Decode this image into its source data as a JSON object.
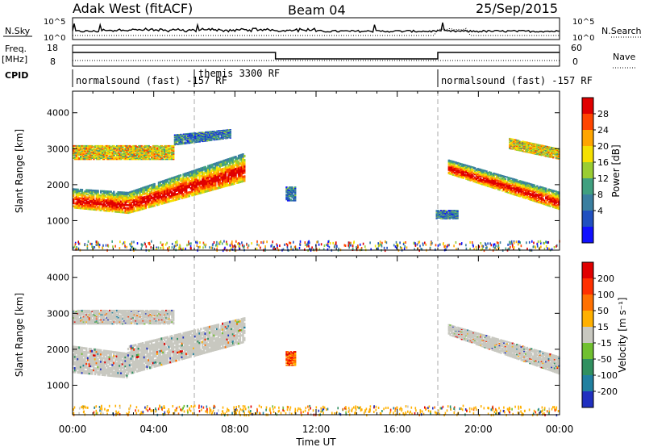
{
  "header": {
    "title": "Adak West (fitACF)",
    "beam": "Beam 04",
    "date": "25/Sep/2015"
  },
  "strip_nsky": {
    "left_label": "N.Sky",
    "right_label": "N.Search",
    "tick_top": "10^5",
    "tick_bottom": "10^0"
  },
  "strip_freq": {
    "left_label_1": "Freq.",
    "left_label_2": "[MHz]",
    "right_label": "Nave",
    "left_ticks": [
      "18",
      "8"
    ],
    "right_ticks": [
      "60",
      "0"
    ]
  },
  "cpid": {
    "label": "CPID",
    "segments": [
      {
        "text": "normalsound (fast) -157 RF",
        "start_hour": 0.0
      },
      {
        "text": "themis 3300 RF",
        "start_hour": 6.0
      },
      {
        "text": "normalsound (fast) -157 RF",
        "start_hour": 18.0
      }
    ]
  },
  "chart_data": [
    {
      "type": "heatmap",
      "name": "power",
      "ylabel": "Slant Range [km]",
      "xlabel": "Time UT",
      "xlim": [
        0,
        24
      ],
      "ylim": [
        180,
        4600
      ],
      "yticks": [
        1000,
        2000,
        3000,
        4000
      ],
      "xtick_labels": [
        "00:00",
        "04:00",
        "08:00",
        "12:00",
        "16:00",
        "20:00",
        "00:00"
      ],
      "colorbar": {
        "label": "Power [dB]",
        "ticks": [
          "4",
          "8",
          "12",
          "16",
          "20",
          "24",
          "28"
        ],
        "colors": [
          "#1010ff",
          "#2050c0",
          "#3a7fa0",
          "#40a080",
          "#9acd32",
          "#f5e000",
          "#ffa500",
          "#ff4500",
          "#e00000"
        ]
      },
      "bands": [
        {
          "t0": 0.0,
          "t1": 2.7,
          "r_lo0": 1350,
          "r_lo1": 1200,
          "r_hi0": 1900,
          "r_hi1": 1800,
          "level": "strong"
        },
        {
          "t0": 2.7,
          "t1": 8.5,
          "r_lo0": 1200,
          "r_lo1": 2100,
          "r_hi0": 1800,
          "r_hi1": 2900,
          "level": "strong"
        },
        {
          "t0": 0.0,
          "t1": 5.0,
          "r_lo0": 2700,
          "r_lo1": 2700,
          "r_hi0": 3100,
          "r_hi1": 3100,
          "level": "medium"
        },
        {
          "t0": 5.0,
          "t1": 7.8,
          "r_lo0": 3100,
          "r_lo1": 3300,
          "r_hi0": 3400,
          "r_hi1": 3550,
          "level": "weak"
        },
        {
          "t0": 10.5,
          "t1": 11.0,
          "r_lo0": 1550,
          "r_lo1": 1550,
          "r_hi0": 1950,
          "r_hi1": 1950,
          "level": "weak"
        },
        {
          "t0": 17.9,
          "t1": 19.0,
          "r_lo0": 1050,
          "r_lo1": 1050,
          "r_hi0": 1300,
          "r_hi1": 1300,
          "level": "weak"
        },
        {
          "t0": 18.5,
          "t1": 24.0,
          "r_lo0": 2300,
          "r_lo1": 1300,
          "r_hi0": 2700,
          "r_hi1": 1800,
          "level": "strong"
        },
        {
          "t0": 21.5,
          "t1": 24.0,
          "r_lo0": 3000,
          "r_lo1": 2700,
          "r_hi0": 3300,
          "r_hi1": 3000,
          "level": "medium"
        }
      ]
    },
    {
      "type": "heatmap",
      "name": "velocity",
      "ylabel": "Slant Range [km]",
      "xlabel": "Time UT",
      "xlim": [
        0,
        24
      ],
      "ylim": [
        180,
        4600
      ],
      "yticks": [
        1000,
        2000,
        3000,
        4000
      ],
      "xtick_labels": [
        "00:00",
        "04:00",
        "08:00",
        "12:00",
        "16:00",
        "20:00",
        "00:00"
      ],
      "colorbar": {
        "label": "Velocity [m s⁻¹]",
        "ticks": [
          "200",
          "100",
          "50",
          "15",
          "-15",
          "-50",
          "-100",
          "-200"
        ],
        "colors": [
          "#2030c0",
          "#2080a0",
          "#309060",
          "#70c030",
          "#c8c8c0",
          "#ffb000",
          "#ff7000",
          "#ff3000",
          "#e00000"
        ]
      },
      "bands": [
        {
          "t0": 0.0,
          "t1": 2.7,
          "r_lo0": 1350,
          "r_lo1": 1200,
          "r_hi0": 2100,
          "r_hi1": 1900,
          "level": "gray"
        },
        {
          "t0": 2.7,
          "t1": 8.5,
          "r_lo0": 1300,
          "r_lo1": 2200,
          "r_hi0": 2100,
          "r_hi1": 2900,
          "level": "gray"
        },
        {
          "t0": 0.0,
          "t1": 5.0,
          "r_lo0": 2700,
          "r_lo1": 2700,
          "r_hi0": 3100,
          "r_hi1": 3100,
          "level": "gray"
        },
        {
          "t0": 10.5,
          "t1": 11.0,
          "r_lo0": 1550,
          "r_lo1": 1550,
          "r_hi0": 1950,
          "r_hi1": 1950,
          "level": "red"
        },
        {
          "t0": 18.5,
          "t1": 24.0,
          "r_lo0": 2400,
          "r_lo1": 1300,
          "r_hi0": 2700,
          "r_hi1": 1800,
          "level": "gray"
        }
      ]
    }
  ]
}
